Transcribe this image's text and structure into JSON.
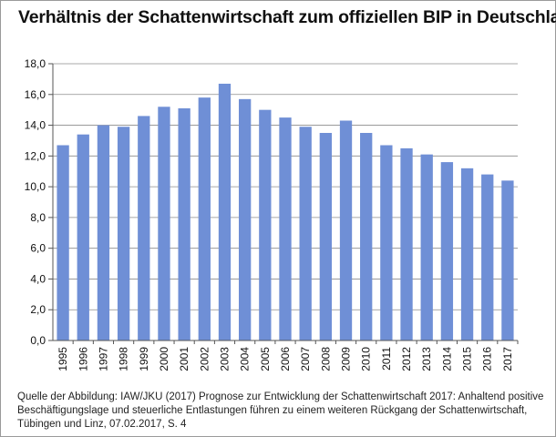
{
  "title": "Verhältnis der Schattenwirtschaft zum offiziellen BIP in Deutschland",
  "source_text": "Quelle der Abbildung: IAW/JKU (2017) Prognose zur Entwicklung der Schattenwirtschaft 2017: Anhaltend positive Beschäftigungslage und steuerliche Entlastungen führen zu einem weiteren Rückgang der Schattenwirtschaft, Tübingen und Linz, 07.02.2017, S. 4",
  "colors": {
    "bar": "#6f8fd6",
    "grid": "#8c8c8c",
    "axis": "#555555"
  },
  "chart_data": {
    "type": "bar",
    "title": "Verhältnis der Schattenwirtschaft zum offiziellen BIP in Deutschland",
    "xlabel": "",
    "ylabel": "",
    "ylim": [
      0,
      18
    ],
    "yticks": [
      "0,0",
      "2,0",
      "4,0",
      "6,0",
      "8,0",
      "10,0",
      "12,0",
      "14,0",
      "16,0",
      "18,0"
    ],
    "grid": true,
    "categories": [
      "1995",
      "1996",
      "1997",
      "1998",
      "1999",
      "2000",
      "2001",
      "2002",
      "2003",
      "2004",
      "2005",
      "2006",
      "2007",
      "2008",
      "2009",
      "2010",
      "2011",
      "2012",
      "2013",
      "2014",
      "2015",
      "2016",
      "2017"
    ],
    "values": [
      12.7,
      13.4,
      14.0,
      13.9,
      14.6,
      15.2,
      15.1,
      15.8,
      16.7,
      15.7,
      15.0,
      14.5,
      13.9,
      13.5,
      14.3,
      13.5,
      12.7,
      12.5,
      12.1,
      11.6,
      11.2,
      10.8,
      10.4
    ]
  }
}
